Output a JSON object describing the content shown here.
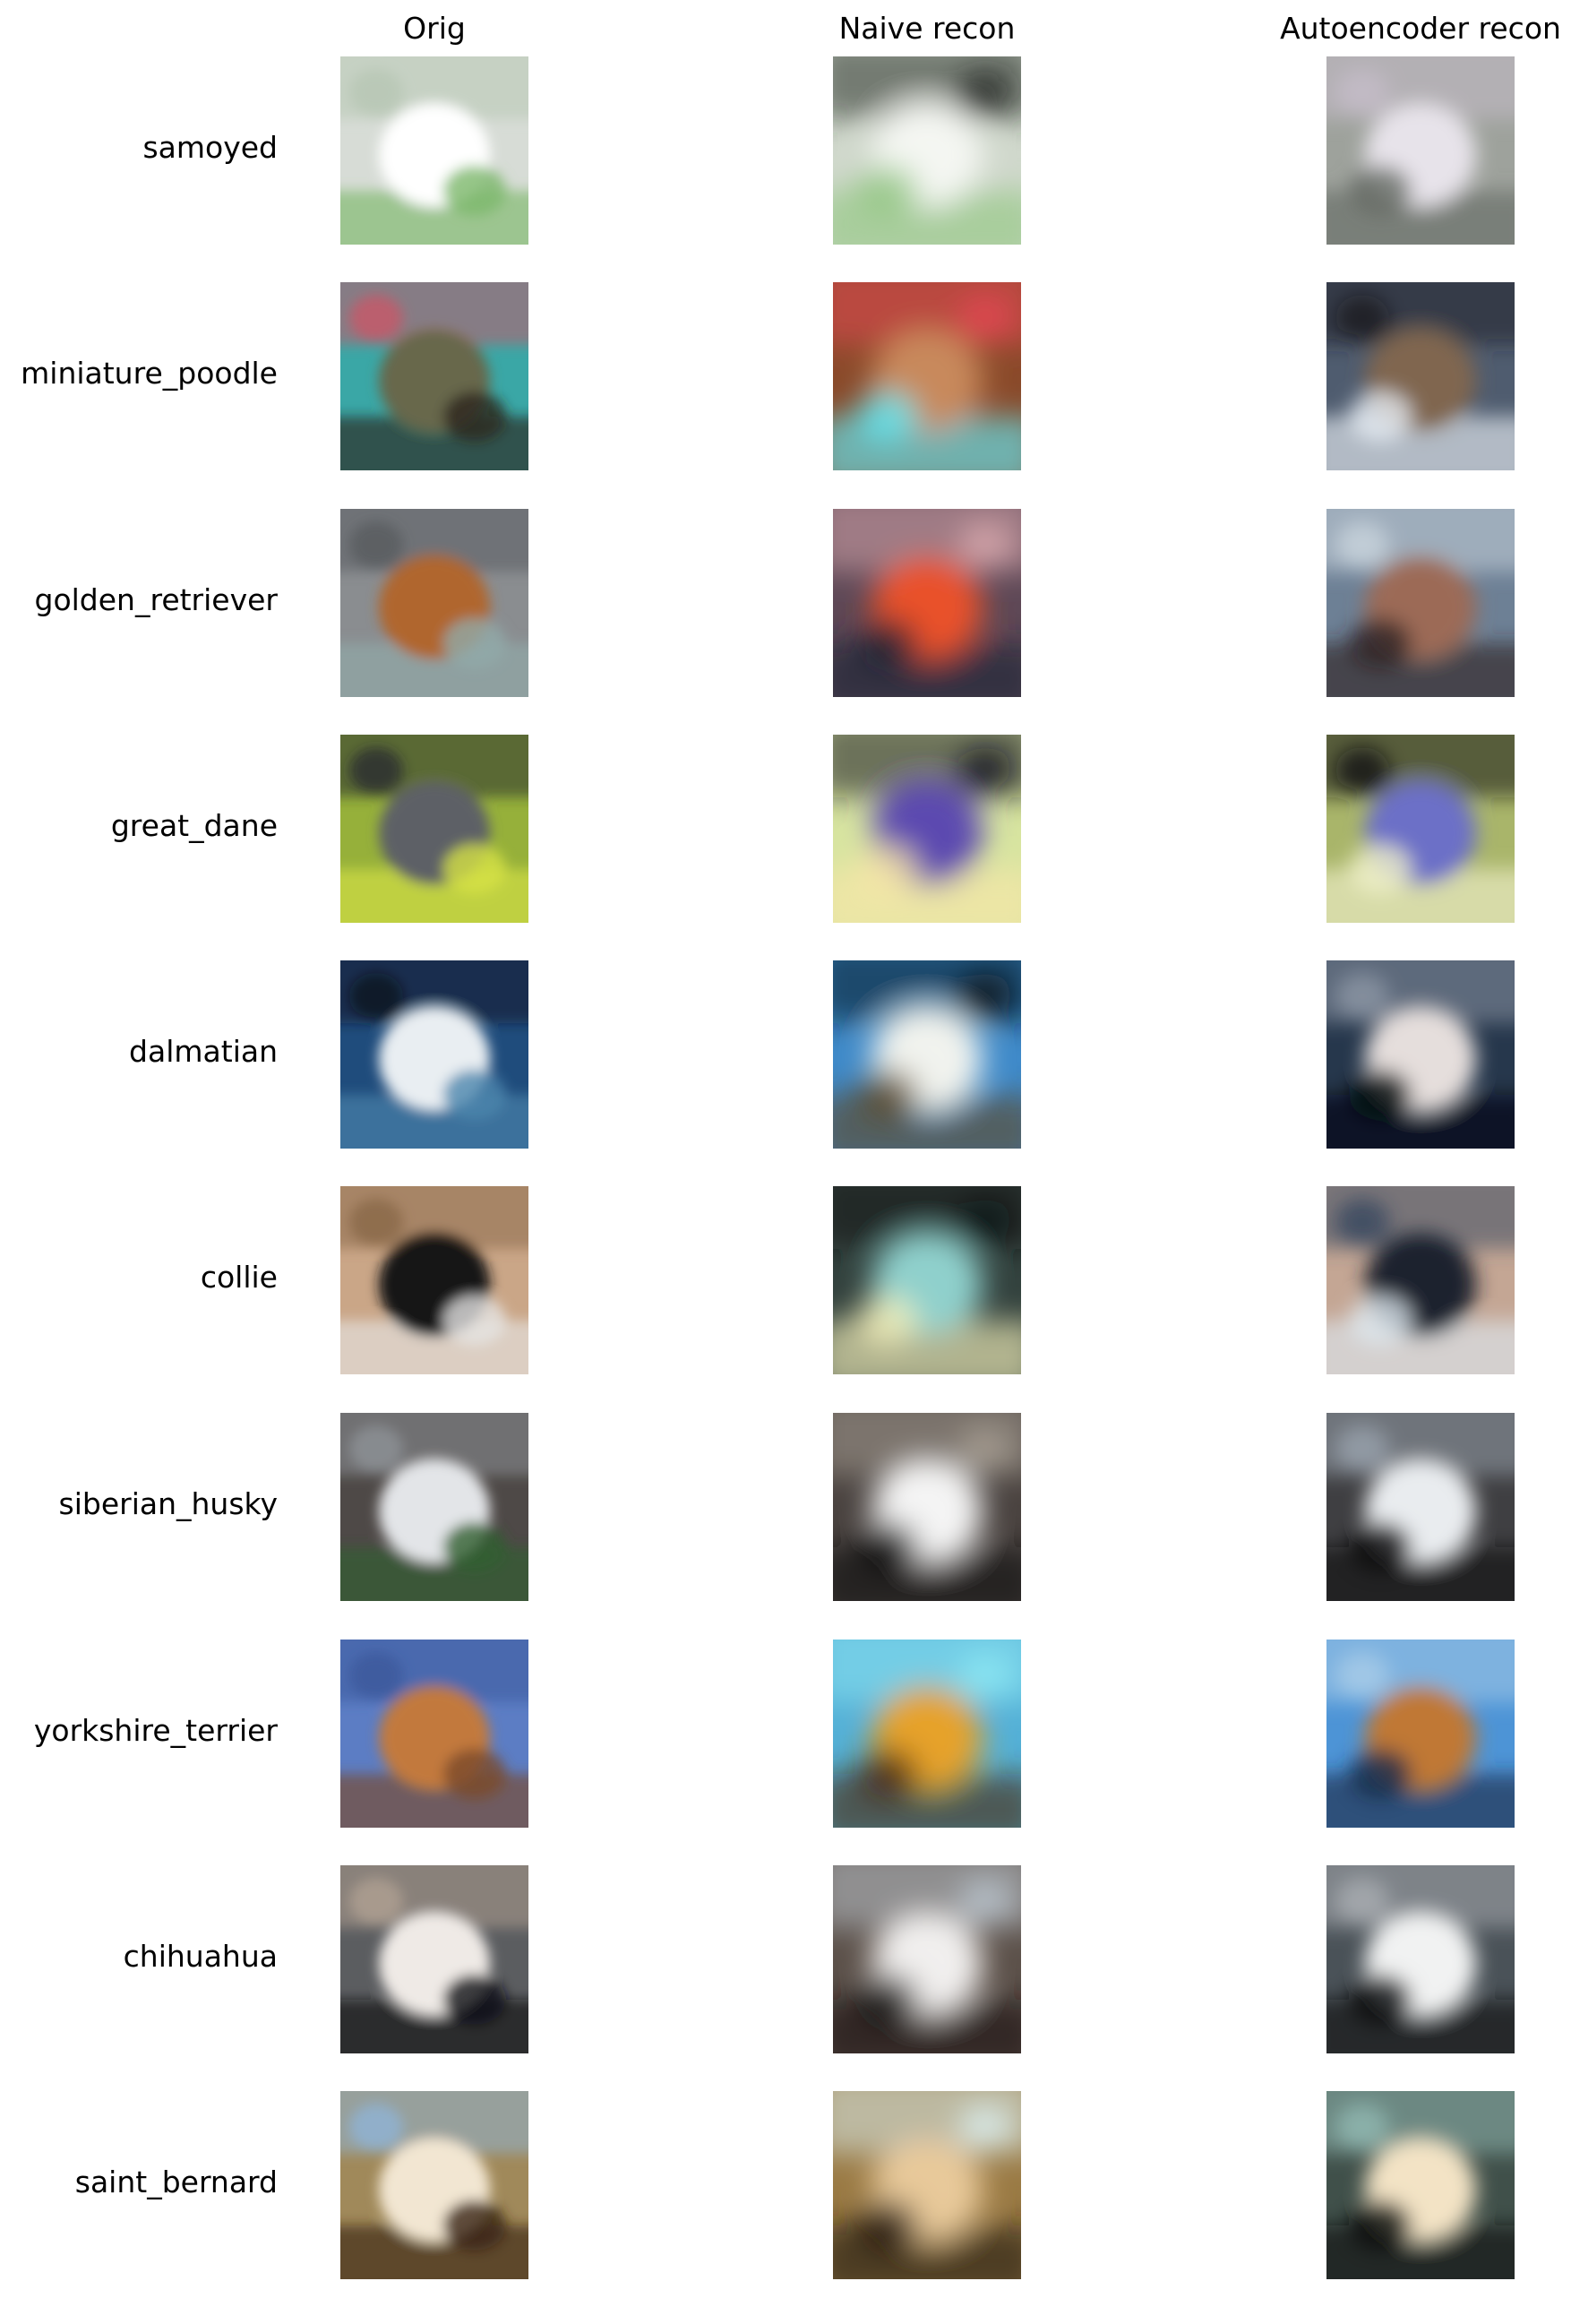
{
  "figure": {
    "columns": [
      {
        "key": "orig",
        "label": "Orig"
      },
      {
        "key": "naive",
        "label": "Naive recon"
      },
      {
        "key": "auto",
        "label": "Autoencoder recon"
      }
    ],
    "rows": [
      {
        "label": "samoyed",
        "orig": {
          "bg": "#d7dcd6",
          "c1": "#ffffff",
          "c2": "#7cb86a",
          "c3": "#b8c8b5"
        },
        "naive": {
          "bg": "#d0d8cc",
          "c1": "#f4f6f2",
          "c2": "#94c784",
          "c3": "#2b2f2b"
        },
        "auto": {
          "bg": "#9ea29c",
          "c1": "#e7e3ea",
          "c2": "#666b65",
          "c3": "#c4bcc8"
        }
      },
      {
        "label": "miniature_poodle",
        "orig": {
          "bg": "#3aa7a6",
          "c1": "#67684b",
          "c2": "#2c261b",
          "c3": "#c45a6a"
        },
        "naive": {
          "bg": "#8a4a2a",
          "c1": "#c8895c",
          "c2": "#62e8f4",
          "c3": "#e24852"
        },
        "auto": {
          "bg": "#4f5c6f",
          "c1": "#80664f",
          "c2": "#e6ecf3",
          "c3": "#1c1d24"
        }
      },
      {
        "label": "golden_retriever",
        "orig": {
          "bg": "#8a8d90",
          "c1": "#b0662e",
          "c2": "#91aaa9",
          "c3": "#5a5d60"
        },
        "naive": {
          "bg": "#5e4856",
          "c1": "#e9512a",
          "c2": "#1f2434",
          "c3": "#d6a6ac"
        },
        "auto": {
          "bg": "#6d8095",
          "c1": "#9c6a57",
          "c2": "#2f2225",
          "c3": "#c7d2db"
        }
      },
      {
        "label": "great_dane",
        "orig": {
          "bg": "#96b03a",
          "c1": "#5d6166",
          "c2": "#d6e246",
          "c3": "#2b2f2f"
        },
        "naive": {
          "bg": "#d7e4a0",
          "c1": "#5b49b0",
          "c2": "#f7e6a8",
          "c3": "#1a1a22"
        },
        "auto": {
          "bg": "#a9b56a",
          "c1": "#6c6fc7",
          "c2": "#eff0c9",
          "c3": "#141717"
        }
      },
      {
        "label": "dalmatian",
        "orig": {
          "bg": "#1f4c7c",
          "c1": "#e9eef2",
          "c2": "#4c86ac",
          "c3": "#0c1724"
        },
        "naive": {
          "bg": "#3f8ac9",
          "c1": "#f1f3ee",
          "c2": "#5d4a2a",
          "c3": "#0a1420"
        },
        "auto": {
          "bg": "#26374c",
          "c1": "#e5dedc",
          "c2": "#06090d",
          "c3": "#8a94a2"
        }
      },
      {
        "label": "collie",
        "orig": {
          "bg": "#caa687",
          "c1": "#121214",
          "c2": "#e5e3e2",
          "c3": "#8b6a4a"
        },
        "naive": {
          "bg": "#33423e",
          "c1": "#8fd0cc",
          "c2": "#f4f0ba",
          "c3": "#0f1414"
        },
        "auto": {
          "bg": "#c4a694",
          "c1": "#1a222e",
          "c2": "#dde7ee",
          "c3": "#3a4a60"
        }
      },
      {
        "label": "siberian_husky",
        "orig": {
          "bg": "#4e4947",
          "c1": "#e3e5e8",
          "c2": "#2f5f30",
          "c3": "#8c8f95"
        },
        "naive": {
          "bg": "#4a4340",
          "c1": "#f4f4f4",
          "c2": "#0d0b0b",
          "c3": "#a69c92"
        },
        "auto": {
          "bg": "#3f3f42",
          "c1": "#e9ecef",
          "c2": "#0b0b0d",
          "c3": "#97a0aa"
        }
      },
      {
        "label": "yorkshire_terrier",
        "orig": {
          "bg": "#5c7dc4",
          "c1": "#c2793c",
          "c2": "#7a4a2a",
          "c3": "#3c5a9c"
        },
        "naive": {
          "bg": "#54b0d6",
          "c1": "#e6a22c",
          "c2": "#4a2a14",
          "c3": "#8ce6f2"
        },
        "auto": {
          "bg": "#4d94d6",
          "c1": "#c07836",
          "c2": "#1a2c48",
          "c3": "#a6cbe8"
        }
      },
      {
        "label": "chihuahua",
        "orig": {
          "bg": "#5b5d60",
          "c1": "#efeae6",
          "c2": "#0f1215",
          "c3": "#ae9f90"
        },
        "naive": {
          "bg": "#5c514a",
          "c1": "#f1efee",
          "c2": "#1a1715",
          "c3": "#b9c2cb"
        },
        "auto": {
          "bg": "#4a5258",
          "c1": "#f1f2f2",
          "c2": "#0d0f11",
          "c3": "#a7abb0"
        }
      },
      {
        "label": "saint_bernard",
        "orig": {
          "bg": "#a0895a",
          "c1": "#f2e6d2",
          "c2": "#3a2414",
          "c3": "#8fb3d2"
        },
        "naive": {
          "bg": "#9a7a44",
          "c1": "#e8c99a",
          "c2": "#24180c",
          "c3": "#d9ecec"
        },
        "auto": {
          "bg": "#40504a",
          "c1": "#f3e3c5",
          "c2": "#0c0f0e",
          "c3": "#8fb6b0"
        }
      }
    ]
  }
}
